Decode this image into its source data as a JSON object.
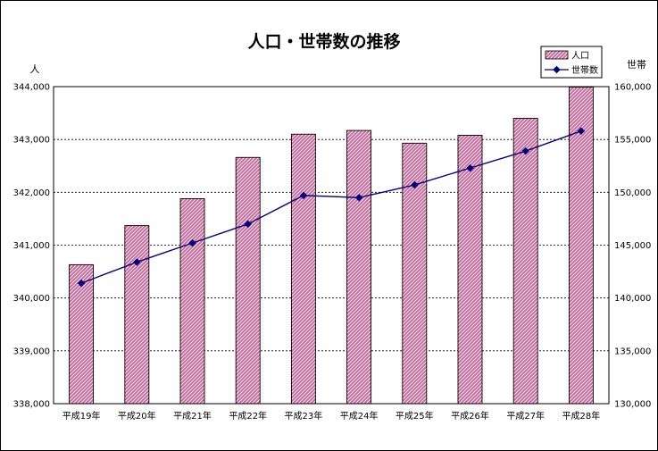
{
  "chart_data": {
    "type": "bar",
    "title": "人口・世帯数の推移",
    "categories": [
      "平成19年",
      "平成20年",
      "平成21年",
      "平成22年",
      "平成23年",
      "平成24年",
      "平成25年",
      "平成26年",
      "平成27年",
      "平成28年"
    ],
    "series": [
      {
        "name": "人口",
        "type": "bar",
        "axis": "left",
        "color": "#cc6699",
        "values": [
          340630,
          341370,
          341880,
          342660,
          343100,
          343170,
          342930,
          343080,
          343400,
          343990
        ]
      },
      {
        "name": "世帯数",
        "type": "line",
        "axis": "right",
        "color": "#000080",
        "values": [
          141400,
          143400,
          145200,
          147000,
          149700,
          149500,
          150700,
          152300,
          153900,
          155800
        ]
      }
    ],
    "left_axis": {
      "label": "人",
      "ylim": [
        338000,
        344000
      ],
      "ticks": [
        "338,000",
        "339,000",
        "340,000",
        "341,000",
        "342,000",
        "343,000",
        "344,000"
      ]
    },
    "right_axis": {
      "label": "世帯",
      "ylim": [
        130000,
        160000
      ],
      "ticks": [
        "130,000",
        "135,000",
        "140,000",
        "145,000",
        "150,000",
        "155,000",
        "160,000"
      ]
    },
    "grid": true,
    "legend": "top-right"
  }
}
